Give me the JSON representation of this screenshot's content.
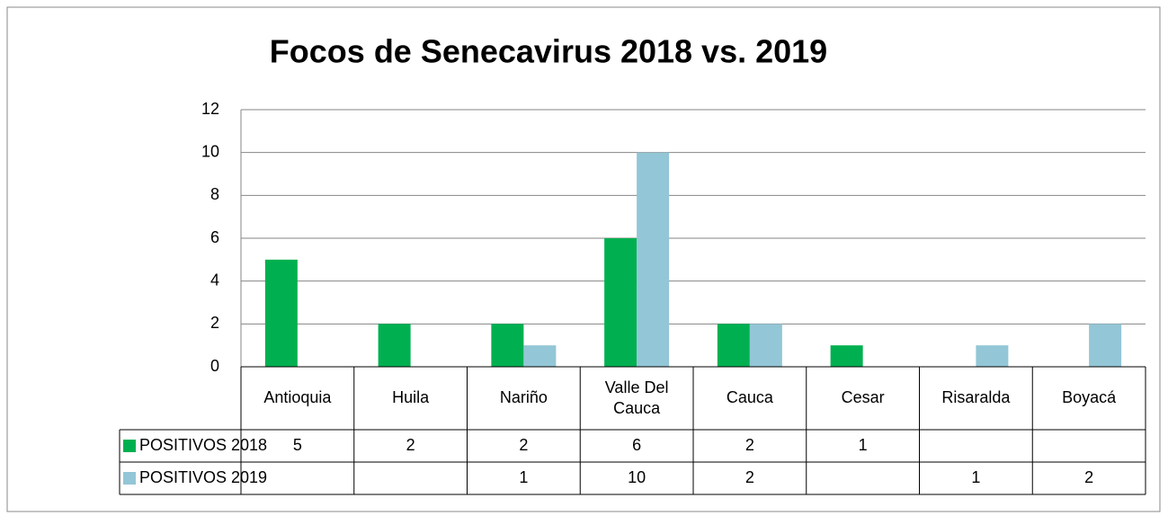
{
  "chart_data": {
    "type": "bar",
    "title": "Focos de Senecavirus 2018 vs. 2019",
    "categories": [
      "Antioquia",
      "Huila",
      "Nariño",
      "Valle Del Cauca",
      "Cauca",
      "Cesar",
      "Risaralda",
      "Boyacá"
    ],
    "series": [
      {
        "name": "POSITIVOS 2018",
        "color": "#00b050",
        "values": [
          5,
          2,
          2,
          6,
          2,
          1,
          null,
          null
        ]
      },
      {
        "name": "POSITIVOS 2019",
        "color": "#93c6d6",
        "values": [
          null,
          null,
          1,
          10,
          2,
          null,
          1,
          2
        ]
      }
    ],
    "ylim": [
      0,
      12
    ],
    "yticks": [
      0,
      2,
      4,
      6,
      8,
      10,
      12
    ],
    "grid": true,
    "data_table": true
  }
}
